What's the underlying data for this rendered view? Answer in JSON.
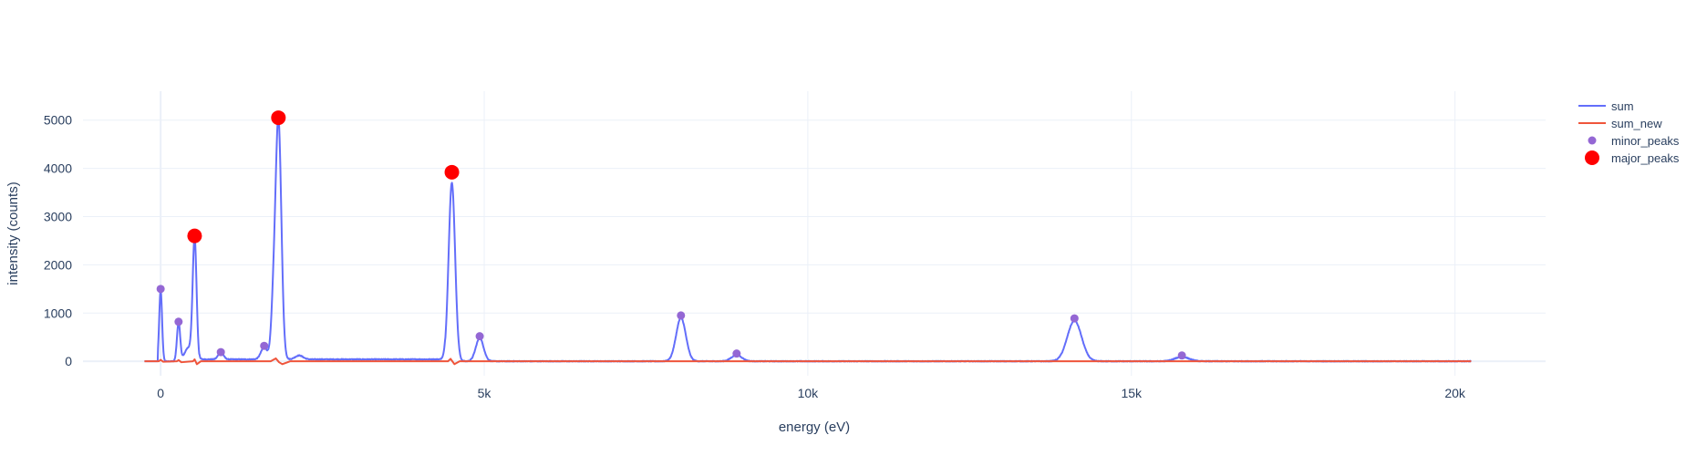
{
  "chart_data": {
    "type": "line",
    "title": "",
    "xlabel": "energy (eV)",
    "ylabel": "intensity (counts)",
    "xlim": [
      -1200,
      21400
    ],
    "ylim": [
      -300,
      5600
    ],
    "x_ticks": [
      {
        "value": 0,
        "label": "0"
      },
      {
        "value": 5000,
        "label": "5k"
      },
      {
        "value": 10000,
        "label": "10k"
      },
      {
        "value": 15000,
        "label": "15k"
      },
      {
        "value": 20000,
        "label": "20k"
      }
    ],
    "y_ticks": [
      {
        "value": 0,
        "label": "0"
      },
      {
        "value": 1000,
        "label": "1000"
      },
      {
        "value": 2000,
        "label": "2000"
      },
      {
        "value": 3000,
        "label": "3000"
      },
      {
        "value": 4000,
        "label": "4000"
      },
      {
        "value": 5000,
        "label": "5000"
      }
    ],
    "grid": true,
    "legend_position": "top-right",
    "x_range": [
      -250,
      20250
    ],
    "series": [
      {
        "name": "sum",
        "type": "line",
        "color": "#636efa",
        "background": 40,
        "peaks": [
          {
            "center": 0,
            "height": 1480,
            "width": 22
          },
          {
            "center": 277,
            "height": 800,
            "width": 25
          },
          {
            "center": 430,
            "height": 280,
            "width": 60
          },
          {
            "center": 525,
            "height": 2500,
            "width": 30
          },
          {
            "center": 930,
            "height": 150,
            "width": 40
          },
          {
            "center": 1600,
            "height": 250,
            "width": 50
          },
          {
            "center": 1740,
            "height": 900,
            "width": 35
          },
          {
            "center": 1820,
            "height": 4950,
            "width": 45
          },
          {
            "center": 2140,
            "height": 80,
            "width": 60
          },
          {
            "center": 4500,
            "height": 3700,
            "width": 50
          },
          {
            "center": 4930,
            "height": 480,
            "width": 60
          },
          {
            "center": 8040,
            "height": 900,
            "width": 75
          },
          {
            "center": 8900,
            "height": 130,
            "width": 80
          },
          {
            "center": 14120,
            "height": 840,
            "width": 110
          },
          {
            "center": 15780,
            "height": 90,
            "width": 110
          }
        ]
      },
      {
        "name": "sum_new",
        "type": "line",
        "color": "#ef553b",
        "points": [
          [
            -250,
            0
          ],
          [
            -30,
            0
          ],
          [
            0,
            30
          ],
          [
            40,
            -10
          ],
          [
            250,
            0
          ],
          [
            277,
            25
          ],
          [
            320,
            -20
          ],
          [
            500,
            0
          ],
          [
            525,
            40
          ],
          [
            560,
            -60
          ],
          [
            620,
            0
          ],
          [
            1700,
            0
          ],
          [
            1780,
            60
          ],
          [
            1830,
            -20
          ],
          [
            1880,
            -60
          ],
          [
            2000,
            0
          ],
          [
            4440,
            0
          ],
          [
            4480,
            50
          ],
          [
            4540,
            -60
          ],
          [
            4620,
            0
          ],
          [
            20250,
            0
          ]
        ]
      },
      {
        "name": "minor_peaks",
        "type": "scatter",
        "color": "#9467d4",
        "marker_size": 9,
        "points": [
          [
            0,
            1500
          ],
          [
            277,
            820
          ],
          [
            930,
            190
          ],
          [
            1600,
            320
          ],
          [
            4930,
            520
          ],
          [
            8040,
            950
          ],
          [
            8900,
            160
          ],
          [
            14120,
            890
          ],
          [
            15780,
            120
          ]
        ]
      },
      {
        "name": "major_peaks",
        "type": "scatter",
        "color": "#ff0000",
        "marker_size": 16,
        "points": [
          [
            525,
            2600
          ],
          [
            1820,
            5050
          ],
          [
            4500,
            3920
          ]
        ]
      }
    ]
  }
}
